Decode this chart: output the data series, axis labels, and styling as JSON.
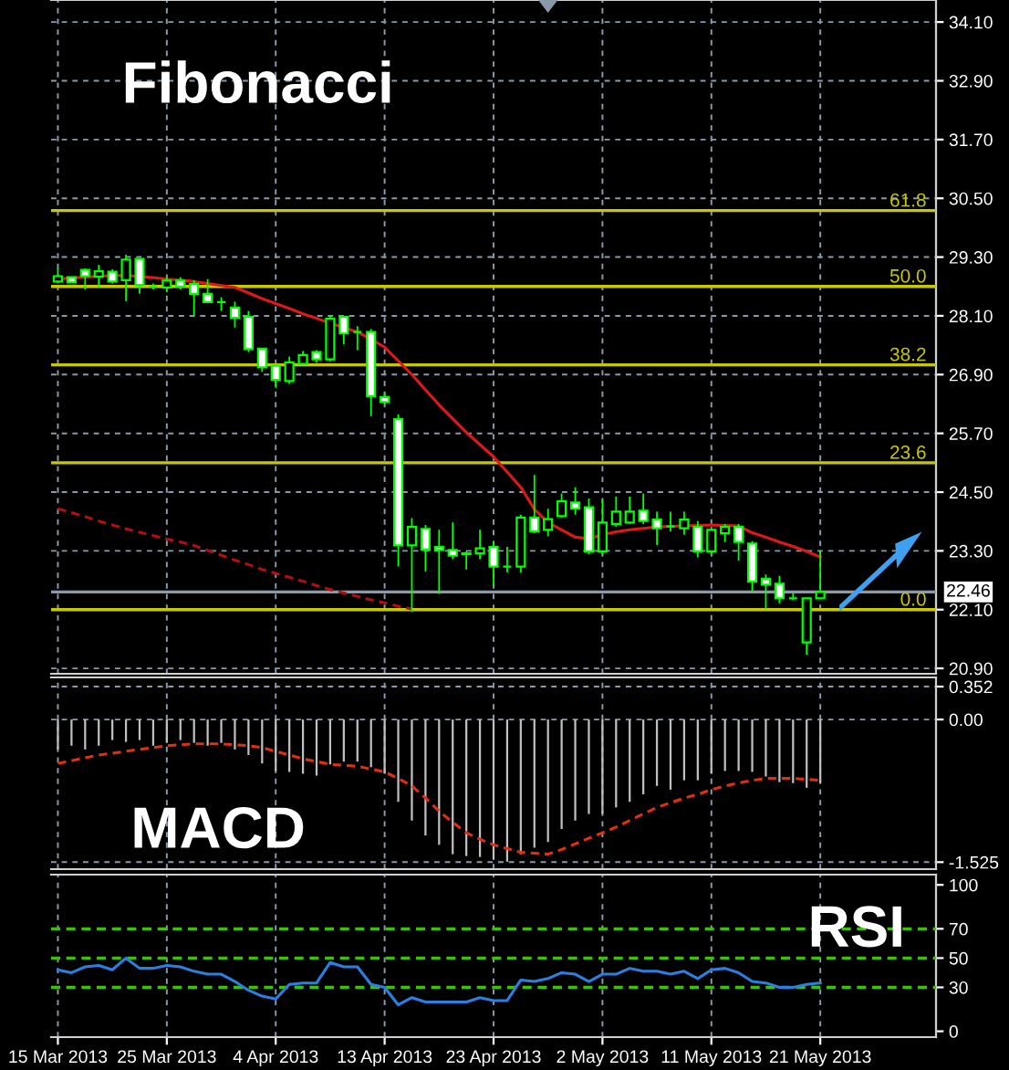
{
  "chart_data": [
    {
      "type": "candlestick",
      "title": "Fibonacci",
      "categories": [
        null,
        null,
        null,
        null,
        null,
        null,
        null,
        null,
        null,
        null,
        null,
        null,
        null,
        null,
        null,
        null,
        null,
        null,
        null,
        null,
        null,
        null,
        null,
        null,
        null,
        null,
        null,
        null,
        null,
        null,
        null,
        null,
        null,
        null,
        null,
        null,
        null,
        null,
        null,
        null,
        null,
        null,
        null,
        null,
        null,
        null,
        null,
        null,
        null,
        null,
        null,
        null,
        null,
        null,
        null,
        null,
        null,
        null,
        null,
        null,
        null,
        null,
        null,
        null,
        null
      ],
      "color": "#00ff00",
      "ohlc": [
        [
          28.8,
          29.07,
          28.76,
          28.91
        ],
        [
          28.89,
          28.89,
          28.77,
          28.78
        ],
        [
          29.04,
          29.07,
          28.64,
          28.91
        ],
        [
          28.9,
          29.14,
          28.68,
          29.01
        ],
        [
          29.0,
          29.05,
          28.76,
          28.8
        ],
        [
          28.83,
          29.35,
          28.4,
          29.25
        ],
        [
          29.26,
          29.26,
          28.55,
          28.73
        ],
        [
          28.7,
          28.76,
          28.64,
          28.7
        ],
        [
          28.68,
          28.89,
          28.58,
          28.82
        ],
        [
          28.82,
          28.89,
          28.64,
          28.7
        ],
        [
          28.75,
          28.83,
          28.1,
          28.55
        ],
        [
          28.55,
          28.85,
          28.38,
          28.38
        ],
        [
          28.38,
          28.48,
          28.2,
          28.38
        ],
        [
          28.27,
          28.39,
          27.86,
          28.06
        ],
        [
          28.08,
          28.2,
          27.36,
          27.42
        ],
        [
          27.43,
          27.43,
          26.96,
          27.05
        ],
        [
          27.08,
          27.08,
          26.63,
          26.79
        ],
        [
          26.77,
          27.27,
          26.71,
          27.15
        ],
        [
          27.12,
          27.38,
          27.12,
          27.3
        ],
        [
          27.36,
          27.4,
          27.15,
          27.21
        ],
        [
          27.21,
          28.1,
          27.17,
          28.04
        ],
        [
          28.08,
          28.1,
          27.52,
          27.74
        ],
        [
          27.77,
          27.89,
          27.4,
          27.77
        ],
        [
          27.77,
          27.83,
          26.05,
          26.46
        ],
        [
          26.44,
          26.53,
          26.3,
          26.34
        ],
        [
          25.99,
          26.09,
          22.98,
          23.41
        ],
        [
          23.41,
          23.97,
          22.05,
          23.79
        ],
        [
          23.75,
          23.83,
          22.88,
          23.33
        ],
        [
          23.38,
          23.73,
          22.42,
          23.32
        ],
        [
          23.32,
          23.88,
          23.13,
          23.2
        ],
        [
          23.25,
          23.29,
          22.92,
          23.23
        ],
        [
          23.25,
          23.73,
          23.13,
          23.35
        ],
        [
          23.38,
          23.48,
          22.58,
          22.98
        ],
        [
          22.98,
          23.38,
          22.86,
          22.98
        ],
        [
          22.98,
          24.04,
          22.86,
          23.98
        ],
        [
          23.98,
          24.85,
          23.66,
          23.7
        ],
        [
          23.73,
          24.16,
          23.6,
          23.95
        ],
        [
          24.01,
          24.47,
          23.98,
          24.31
        ],
        [
          24.29,
          24.6,
          24.04,
          24.16
        ],
        [
          24.19,
          24.37,
          23.23,
          23.29
        ],
        [
          23.29,
          24.35,
          23.23,
          23.88
        ],
        [
          23.85,
          24.41,
          23.79,
          24.1
        ],
        [
          23.88,
          24.41,
          23.85,
          24.1
        ],
        [
          24.12,
          24.47,
          23.85,
          23.91
        ],
        [
          23.94,
          24.1,
          23.42,
          23.76
        ],
        [
          23.8,
          24.1,
          23.7,
          23.8
        ],
        [
          23.76,
          24.1,
          23.63,
          23.94
        ],
        [
          23.79,
          23.91,
          23.17,
          23.29
        ],
        [
          23.29,
          23.79,
          23.23,
          23.73
        ],
        [
          23.66,
          23.85,
          23.48,
          23.79
        ],
        [
          23.79,
          23.85,
          23.1,
          23.48
        ],
        [
          23.45,
          23.5,
          22.48,
          22.67
        ],
        [
          22.73,
          22.82,
          22.11,
          22.61
        ],
        [
          22.63,
          22.79,
          22.23,
          22.33
        ],
        [
          22.33,
          22.45,
          22.3,
          22.33
        ],
        [
          21.43,
          22.33,
          21.18,
          22.33
        ],
        [
          22.33,
          23.29,
          22.33,
          22.46
        ],
        null,
        null,
        null,
        null,
        null,
        null,
        null,
        null
      ],
      "series": [
        {
          "type": "line",
          "color": "#e01818",
          "line_style": "solid",
          "values": [
            28.85,
            28.87,
            28.89,
            28.91,
            28.92,
            28.93,
            28.9,
            28.88,
            28.85,
            28.83,
            28.8,
            28.76,
            28.72,
            28.68,
            28.57,
            28.45,
            28.35,
            28.25,
            28.14,
            28.05,
            27.95,
            27.86,
            27.77,
            27.62,
            27.46,
            27.18,
            26.9,
            26.59,
            26.28,
            26.0,
            25.72,
            25.47,
            25.22,
            24.91,
            24.6,
            24.15,
            23.88,
            23.73,
            23.58,
            23.55,
            23.63,
            23.69,
            23.73,
            23.76,
            23.79,
            23.8,
            23.81,
            23.82,
            23.83,
            23.82,
            23.81,
            23.67,
            23.58,
            23.48,
            23.39,
            23.29,
            23.17,
            null,
            null,
            null,
            null,
            null,
            null,
            null,
            null
          ]
        },
        {
          "type": "line",
          "color": "#b01010",
          "line_style": "dashed",
          "values": [
            24.16,
            24.08,
            24.0,
            23.91,
            23.83,
            23.75,
            23.68,
            23.61,
            23.54,
            23.48,
            23.41,
            23.31,
            23.21,
            23.11,
            23.02,
            22.92,
            22.84,
            22.76,
            22.68,
            22.59,
            22.51,
            22.44,
            22.37,
            22.3,
            22.24,
            22.17,
            22.11,
            null,
            null,
            null,
            null,
            null,
            null,
            null,
            null,
            null,
            null,
            null,
            null,
            null,
            null,
            null,
            null,
            null,
            null,
            null,
            null,
            null,
            null,
            null,
            null,
            null,
            null,
            null,
            null,
            null,
            null,
            null,
            null,
            null,
            null,
            null,
            null,
            null,
            null
          ]
        }
      ],
      "ylim": [
        20.79,
        34.55
      ],
      "yticks": [
        {
          "value": 34.1,
          "label": "34.10"
        },
        {
          "value": 32.9,
          "label": "32.90"
        },
        {
          "value": 31.7,
          "label": "31.70"
        },
        {
          "value": 30.5,
          "label": "30.50"
        },
        {
          "value": 29.3,
          "label": "29.30"
        },
        {
          "value": 28.1,
          "label": "28.10"
        },
        {
          "value": 26.9,
          "label": "26.90"
        },
        {
          "value": 25.7,
          "label": "25.70"
        },
        {
          "value": 24.5,
          "label": "24.50"
        },
        {
          "value": 23.3,
          "label": "23.30"
        },
        {
          "value": 22.1,
          "label": "22.10"
        },
        {
          "value": 20.9,
          "label": "20.90"
        }
      ],
      "ref_lines": [
        {
          "axis": "y",
          "value": 30.25,
          "color": "#c8c800"
        },
        {
          "axis": "y",
          "value": 28.7,
          "color": "#c8c800"
        },
        {
          "axis": "y",
          "value": 27.1,
          "color": "#c8c800"
        },
        {
          "axis": "y",
          "value": 25.1,
          "color": "#c8c800"
        },
        {
          "axis": "y",
          "value": 22.1,
          "color": "#c8c800"
        },
        {
          "axis": "y",
          "value": 22.46,
          "label": "22.46",
          "color": "#8a9aaa"
        }
      ],
      "annotations": [
        {
          "text": "61.8",
          "y": 30.25
        },
        {
          "text": "50.0",
          "y": 28.7
        },
        {
          "text": "38.2",
          "y": 27.1
        },
        {
          "text": "23.6",
          "y": 25.1
        },
        {
          "text": "0.0",
          "y": 22.1
        }
      ],
      "grid": true,
      "tick_labels": "y"
    },
    {
      "type": "bar",
      "title": "MACD",
      "categories": [
        null,
        null,
        null,
        null,
        null,
        null,
        null,
        null,
        null,
        null,
        null,
        null,
        null,
        null,
        null,
        null,
        null,
        null,
        null,
        null,
        null,
        null,
        null,
        null,
        null,
        null,
        null,
        null,
        null,
        null,
        null,
        null,
        null,
        null,
        null,
        null,
        null,
        null,
        null,
        null,
        null,
        null,
        null,
        null,
        null,
        null,
        null,
        null,
        null,
        null,
        null,
        null,
        null,
        null,
        null,
        null,
        null,
        null,
        null,
        null,
        null,
        null,
        null,
        null,
        null
      ],
      "series": [
        {
          "type": "bar",
          "color": "#c0c0c0",
          "values": [
            -0.32,
            -0.28,
            -0.32,
            -0.28,
            -0.22,
            -0.24,
            -0.22,
            -0.28,
            -0.25,
            -0.22,
            -0.25,
            -0.28,
            -0.25,
            -0.32,
            -0.38,
            -0.47,
            -0.55,
            -0.56,
            -0.58,
            -0.6,
            -0.48,
            -0.45,
            -0.45,
            -0.51,
            -0.58,
            -0.88,
            -1.08,
            -1.24,
            -1.34,
            -1.44,
            -1.46,
            -1.47,
            -1.5,
            -1.52,
            -1.44,
            -1.37,
            -1.31,
            -1.17,
            -1.08,
            -1.01,
            -1.01,
            -0.94,
            -0.88,
            -0.8,
            -0.71,
            -0.75,
            -0.65,
            -0.65,
            -0.58,
            -0.55,
            -0.55,
            -0.56,
            -0.61,
            -0.67,
            -0.68,
            -0.73,
            -0.68,
            null,
            null,
            null,
            null,
            null,
            null,
            null,
            null
          ]
        },
        {
          "type": "line",
          "color": "#e03010",
          "line_style": "dashed",
          "values": [
            -0.47,
            -0.44,
            -0.41,
            -0.38,
            -0.36,
            -0.34,
            -0.32,
            -0.3,
            -0.28,
            -0.27,
            -0.26,
            -0.26,
            -0.26,
            -0.27,
            -0.28,
            -0.3,
            -0.34,
            -0.38,
            -0.42,
            -0.45,
            -0.48,
            -0.49,
            -0.5,
            -0.53,
            -0.56,
            -0.63,
            -0.71,
            -0.84,
            -0.98,
            -1.1,
            -1.21,
            -1.28,
            -1.34,
            -1.38,
            -1.42,
            -1.43,
            -1.44,
            -1.39,
            -1.33,
            -1.27,
            -1.21,
            -1.15,
            -1.08,
            -1.01,
            -0.94,
            -0.89,
            -0.84,
            -0.8,
            -0.75,
            -0.71,
            -0.68,
            -0.65,
            -0.63,
            -0.63,
            -0.63,
            -0.64,
            -0.65,
            null,
            null,
            null,
            null,
            null,
            null,
            null,
            null
          ]
        }
      ],
      "ylim": [
        -1.6,
        0.45
      ],
      "yticks": [
        0.352,
        {
          "value": 0,
          "label": "0.00"
        },
        {
          "value": -1.525,
          "label": "-1.525"
        }
      ],
      "grid": true,
      "tick_labels": "y"
    },
    {
      "type": "line",
      "title": "RSI",
      "categories": [
        "15 Mar 2013",
        null,
        null,
        null,
        null,
        null,
        null,
        null,
        "25 Mar 2013",
        null,
        null,
        null,
        null,
        null,
        null,
        null,
        "4 Apr 2013",
        null,
        null,
        null,
        null,
        null,
        null,
        null,
        "13 Apr 2013",
        null,
        null,
        null,
        null,
        null,
        null,
        null,
        "23 Apr 2013",
        null,
        null,
        null,
        null,
        null,
        null,
        null,
        "2 May 2013",
        null,
        null,
        null,
        null,
        null,
        null,
        null,
        "11 May 2013",
        null,
        null,
        null,
        null,
        null,
        null,
        null,
        "21 May 2013",
        null,
        null,
        null,
        null,
        null,
        null,
        null,
        null
      ],
      "series": [
        {
          "type": "line",
          "color": "#2a80e0",
          "line_style": "solid",
          "values": [
            42,
            40,
            44,
            45,
            42,
            50,
            43,
            43,
            45,
            44,
            41,
            39,
            39,
            34,
            28,
            24,
            22,
            32,
            33,
            33,
            47,
            44,
            44,
            32,
            30,
            18,
            23,
            20,
            20,
            20,
            20,
            23,
            21,
            21,
            35,
            34,
            36,
            40,
            39,
            34,
            39,
            39,
            43,
            41,
            41,
            39,
            41,
            36,
            42,
            43,
            40,
            34,
            33,
            30,
            30,
            32,
            33,
            null,
            null,
            null,
            null,
            null,
            null,
            null,
            null
          ]
        }
      ],
      "ylim": [
        -4,
        107
      ],
      "yticks": [
        100,
        70,
        50,
        30,
        0
      ],
      "ref_lines": [
        {
          "axis": "y",
          "value": 70,
          "color": "#40c000",
          "line_style": "dashed"
        },
        {
          "axis": "y",
          "value": 50,
          "color": "#40c000",
          "line_style": "dashed"
        },
        {
          "axis": "y",
          "value": 30,
          "color": "#40c000",
          "line_style": "dashed"
        }
      ],
      "grid": "x"
    }
  ]
}
